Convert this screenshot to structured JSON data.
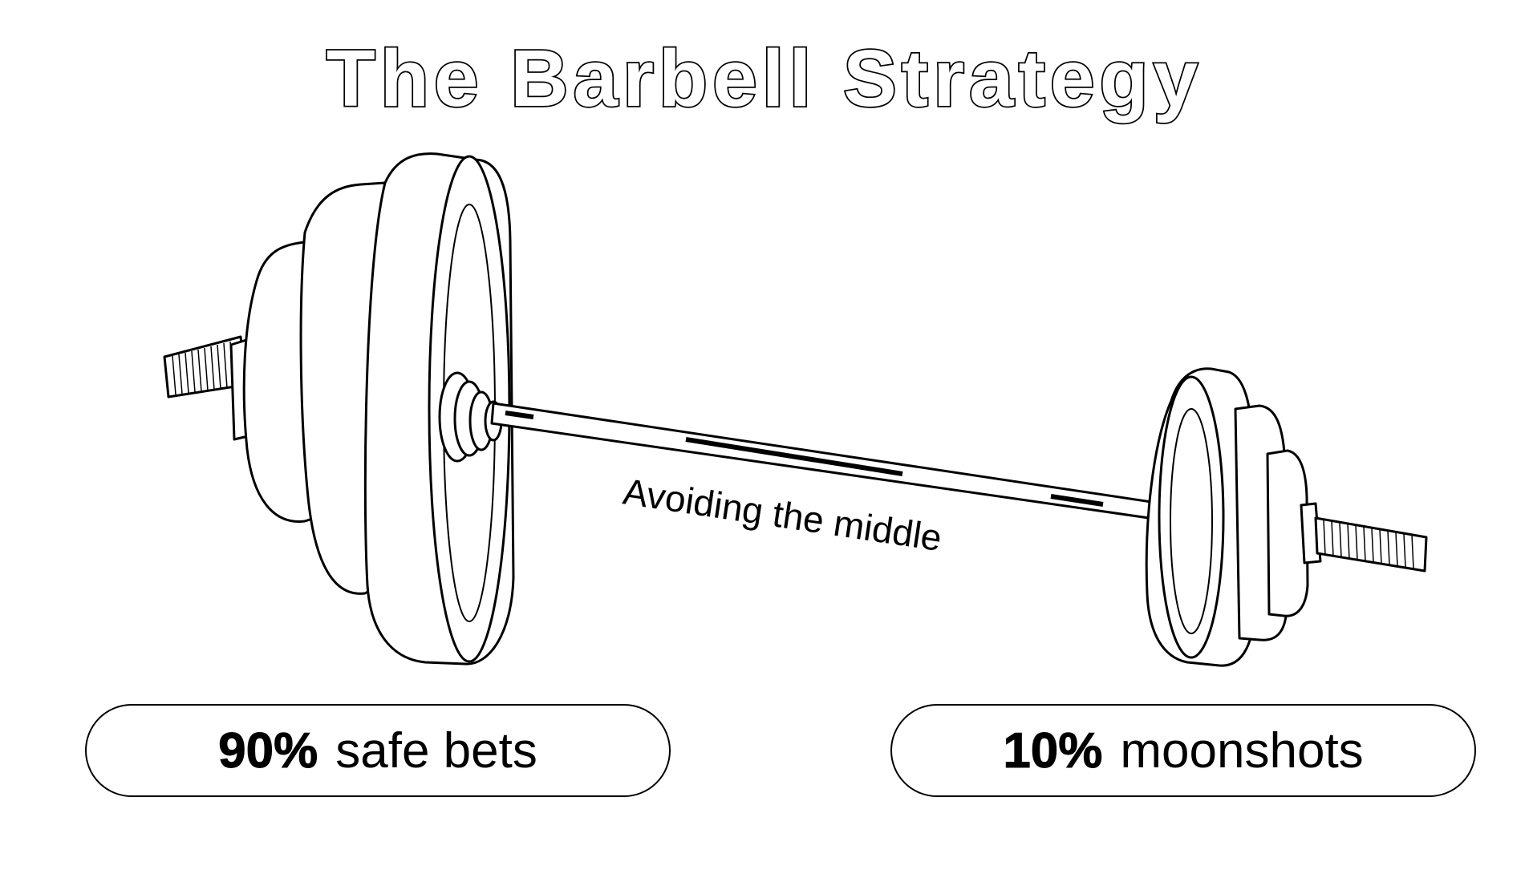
{
  "title": "The Barbell Strategy",
  "bar_caption": "Avoiding the middle",
  "left_label": {
    "percent": "90%",
    "text": "safe bets"
  },
  "right_label": {
    "percent": "10%",
    "text": "moonshots"
  },
  "colors": {
    "ink": "#000000",
    "paper": "#ffffff"
  }
}
